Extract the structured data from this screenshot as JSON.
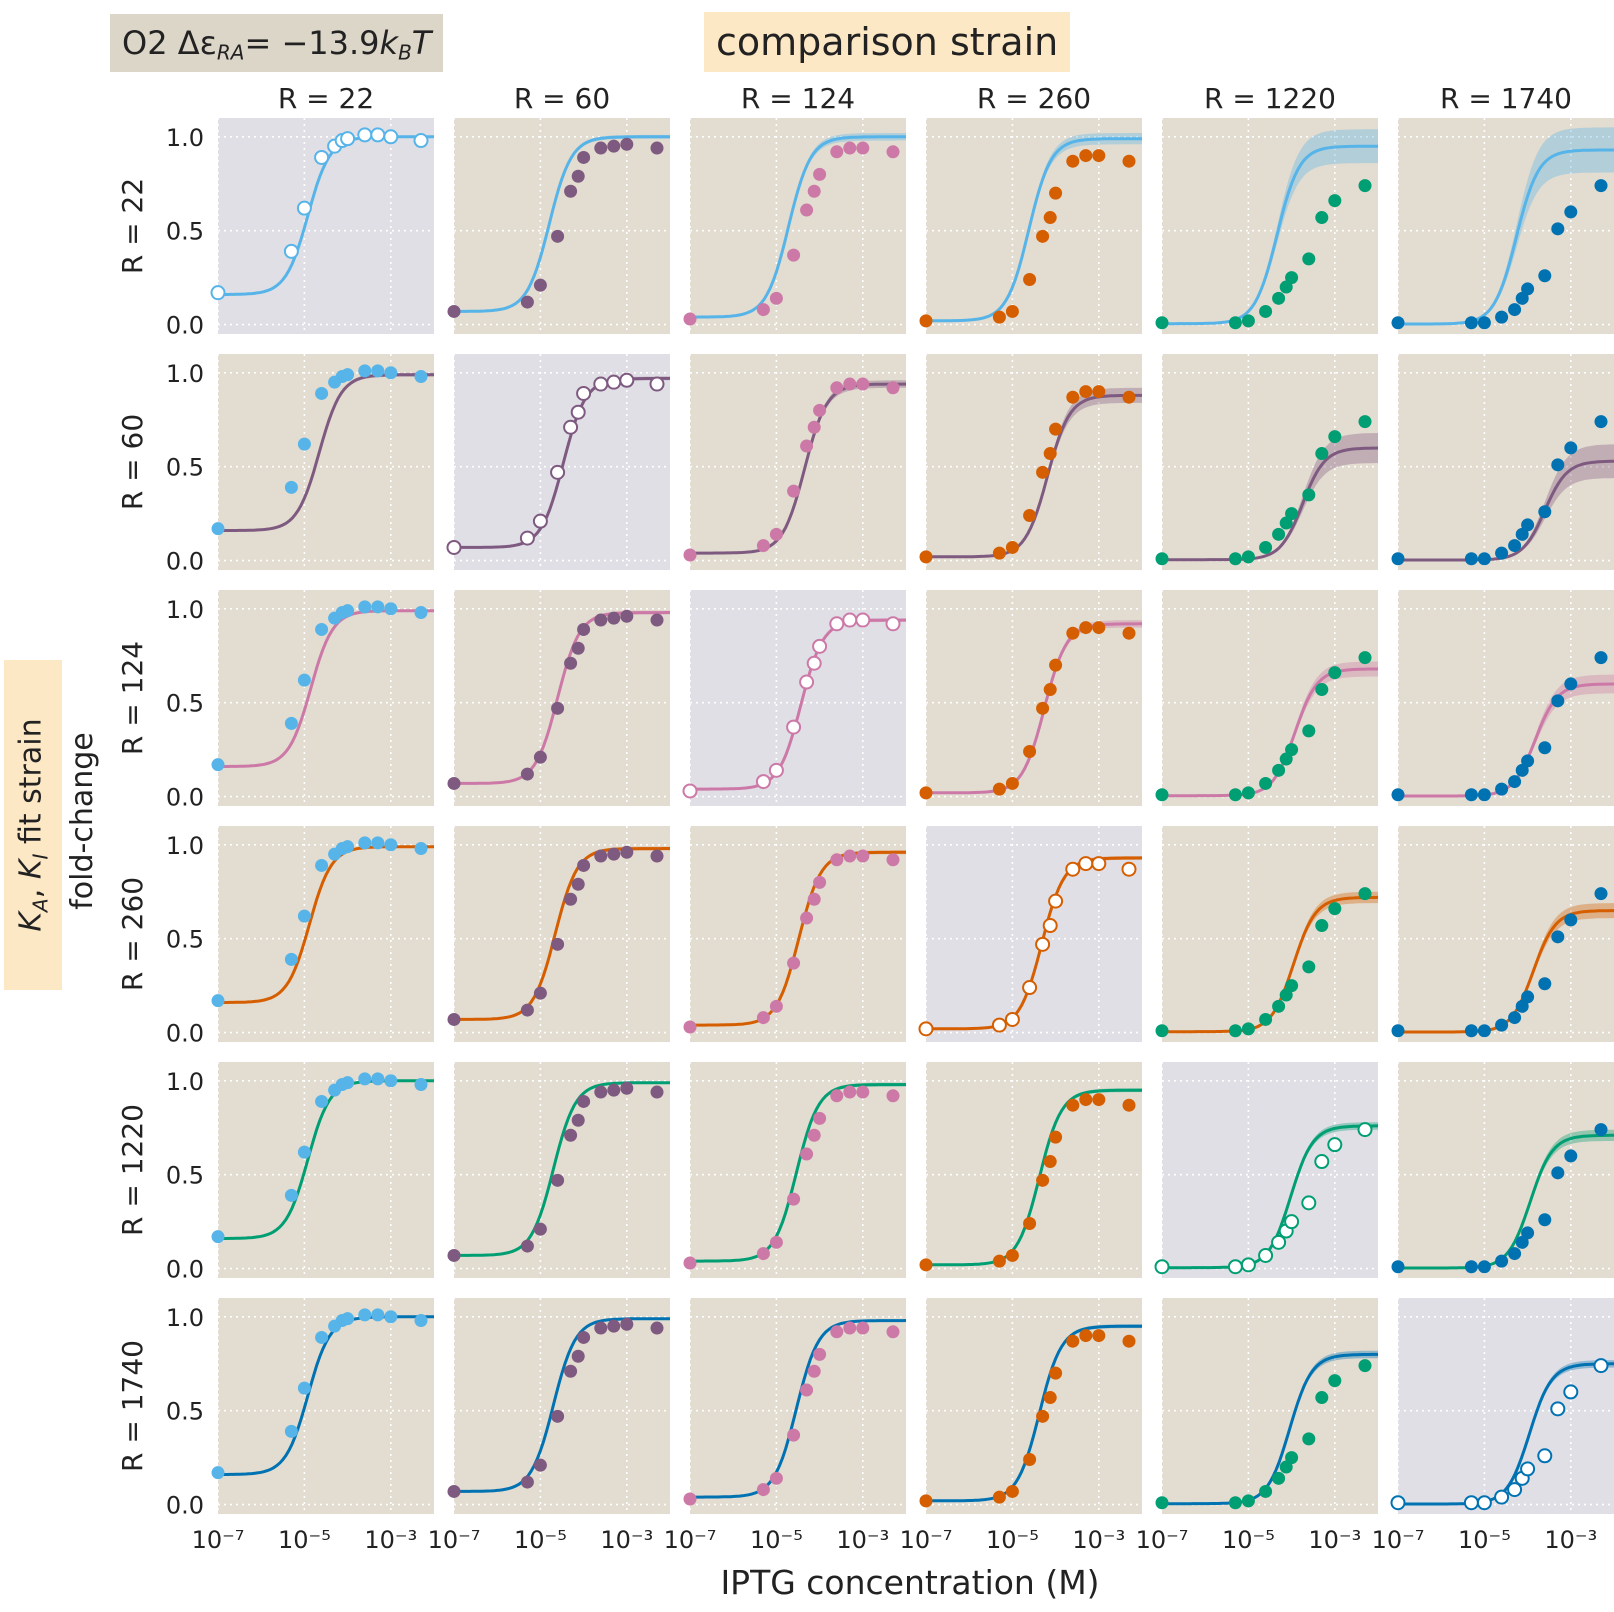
{
  "figure": {
    "operator_label": "O2 Δε",
    "operator_subscript": "RA",
    "operator_value": "= −13.9 ",
    "operator_unit_k": "k",
    "operator_unit_sub": "B",
    "operator_unit_T": "T",
    "top_label": "comparison strain",
    "left_label_k": "K",
    "left_label_a": "A",
    "left_label_comma": ", ",
    "left_label_i": "I",
    "left_label_rest": " fit strain",
    "xlabel": "IPTG concentration (M)",
    "ylabel": "fold-change"
  },
  "chart_data": {
    "type": "scatter",
    "layout": "6x6 grid; row = fit strain (theory curve + credible band), column = comparison strain (data points); diagonal panels highlighted, open circles",
    "x_scale": "log",
    "xlim": [
      1e-07,
      0.01
    ],
    "ylim": [
      -0.05,
      1.1
    ],
    "x_ticks": [
      1e-07,
      1e-05,
      0.001
    ],
    "x_tick_labels": [
      "10⁻⁷",
      "10⁻⁵",
      "10⁻³"
    ],
    "y_ticks": [
      0.0,
      0.5,
      1.0
    ],
    "y_tick_labels": [
      "0.0",
      "0.5",
      "1.0"
    ],
    "grid": true,
    "colors": {
      "R22": "#56b4e9",
      "R60": "#7e5a80",
      "R124": "#cc79a7",
      "R260": "#d55e00",
      "R1220": "#009e73",
      "R1740": "#0072b2",
      "panel_bg": "#e3dcd0",
      "diagonal_bg": "#e1dfe6"
    },
    "strains": [
      "R = 22",
      "R = 60",
      "R = 124",
      "R = 260",
      "R = 1220",
      "R = 1740"
    ],
    "iptg_M": [
      1e-07,
      5e-06,
      1e-05,
      2.5e-05,
      5e-05,
      7.5e-05,
      0.0001,
      0.00025,
      0.0005,
      0.001,
      0.005
    ],
    "series": [
      {
        "name": "R = 22",
        "fold_change": [
          0.17,
          0.39,
          0.62,
          0.89,
          0.95,
          0.98,
          0.99,
          1.01,
          1.01,
          1.0,
          0.98
        ]
      },
      {
        "name": "R = 60",
        "fold_change": [
          0.07,
          0.12,
          0.21,
          0.47,
          0.71,
          0.79,
          0.89,
          0.94,
          0.95,
          0.96,
          0.94
        ]
      },
      {
        "name": "R = 124",
        "fold_change": [
          0.03,
          0.08,
          0.14,
          0.37,
          0.61,
          0.71,
          0.8,
          0.92,
          0.94,
          0.94,
          0.92
        ]
      },
      {
        "name": "R = 260",
        "fold_change": [
          0.02,
          0.04,
          0.07,
          0.24,
          0.47,
          0.57,
          0.7,
          0.87,
          0.9,
          0.9,
          0.87
        ]
      },
      {
        "name": "R = 1220",
        "fold_change": [
          0.01,
          0.01,
          0.02,
          0.07,
          0.14,
          0.2,
          0.25,
          0.35,
          0.57,
          0.66,
          0.74
        ]
      },
      {
        "name": "R = 1740",
        "fold_change": [
          0.01,
          0.01,
          0.01,
          0.04,
          0.08,
          0.14,
          0.19,
          0.26,
          0.51,
          0.6,
          0.74
        ]
      }
    ],
    "fit_curves": {
      "R = 22": {
        "leakiness": [
          0.16,
          0.07,
          0.04,
          0.02,
          0.005,
          0.003
        ],
        "saturation": [
          1.0,
          1.0,
          1.0,
          0.99,
          0.95,
          0.93
        ],
        "ec50_M": [
          1.2e-05,
          1.6e-05,
          1.9e-05,
          2.4e-05,
          4.6e-05,
          5.5e-05
        ],
        "band": [
          0.0,
          0.01,
          0.02,
          0.03,
          0.09,
          0.12
        ]
      },
      "R = 60": {
        "leakiness": [
          0.16,
          0.07,
          0.04,
          0.02,
          0.005,
          0.003
        ],
        "saturation": [
          0.99,
          0.97,
          0.94,
          0.88,
          0.6,
          0.53
        ],
        "ec50_M": [
          2.2e-05,
          3.4e-05,
          4.5e-05,
          6.5e-05,
          0.00018,
          0.00025
        ],
        "band": [
          0.01,
          0.01,
          0.02,
          0.04,
          0.08,
          0.09
        ]
      },
      "R = 124": {
        "leakiness": [
          0.16,
          0.07,
          0.04,
          0.02,
          0.005,
          0.003
        ],
        "saturation": [
          0.99,
          0.98,
          0.94,
          0.92,
          0.68,
          0.6
        ],
        "ec50_M": [
          1.4e-05,
          2.5e-05,
          3.7e-05,
          5.5e-05,
          0.00012,
          0.00015
        ],
        "band": [
          0.0,
          0.01,
          0.01,
          0.02,
          0.04,
          0.05
        ]
      },
      "R = 260": {
        "leakiness": [
          0.16,
          0.07,
          0.04,
          0.02,
          0.005,
          0.003
        ],
        "saturation": [
          0.99,
          0.98,
          0.96,
          0.93,
          0.72,
          0.65
        ],
        "ec50_M": [
          1.3e-05,
          2.2e-05,
          3.3e-05,
          4.8e-05,
          0.00011,
          0.000135
        ],
        "band": [
          0.0,
          0.01,
          0.01,
          0.01,
          0.03,
          0.04
        ]
      },
      "R = 1220": {
        "leakiness": [
          0.16,
          0.07,
          0.04,
          0.02,
          0.005,
          0.003
        ],
        "saturation": [
          1.0,
          0.99,
          0.98,
          0.95,
          0.76,
          0.71
        ],
        "ec50_M": [
          1.2e-05,
          2e-05,
          2.9e-05,
          4.2e-05,
          9.5e-05,
          0.000115
        ],
        "band": [
          0.0,
          0.0,
          0.01,
          0.01,
          0.02,
          0.03
        ]
      },
      "R = 1740": {
        "leakiness": [
          0.16,
          0.07,
          0.04,
          0.02,
          0.005,
          0.003
        ],
        "saturation": [
          1.0,
          0.99,
          0.98,
          0.95,
          0.8,
          0.75
        ],
        "ec50_M": [
          1.2e-05,
          2e-05,
          2.9e-05,
          4.2e-05,
          9e-05,
          0.00011
        ],
        "band": [
          0.0,
          0.0,
          0.0,
          0.01,
          0.02,
          0.02
        ]
      }
    }
  }
}
